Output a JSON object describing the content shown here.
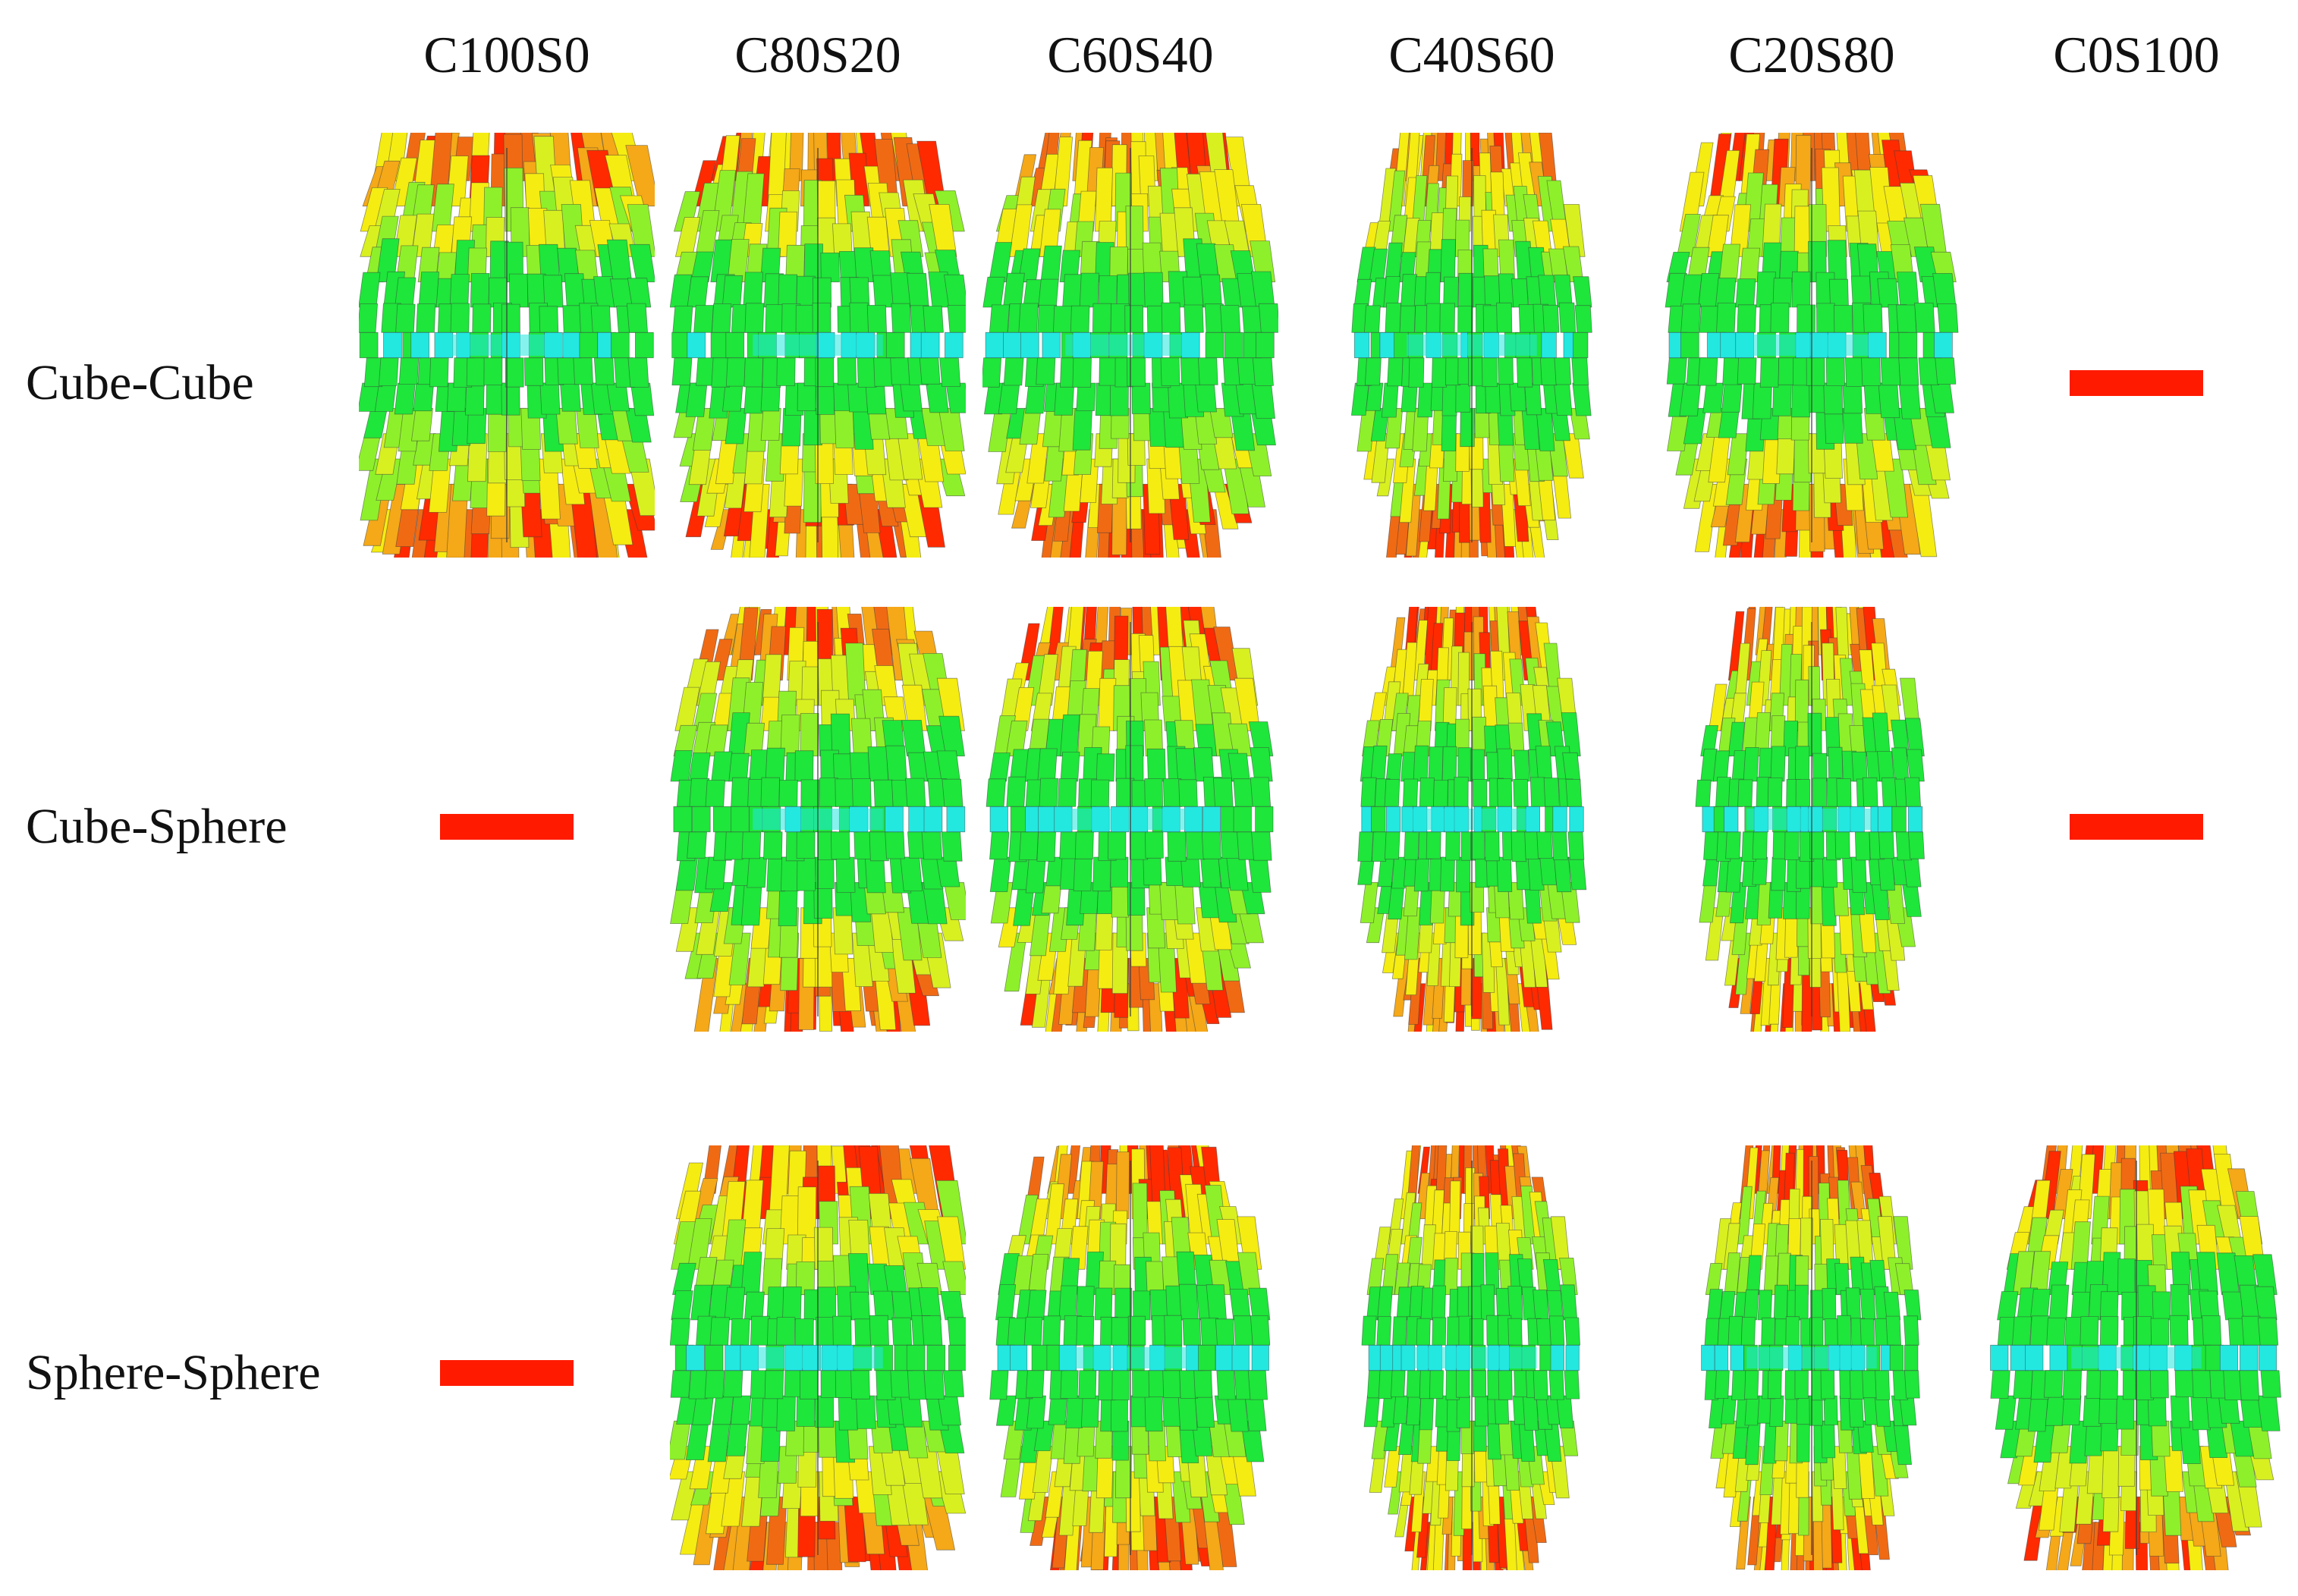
{
  "columns": [
    "C100S0",
    "C80S20",
    "C60S40",
    "C40S60",
    "C20S80",
    "C0S100"
  ],
  "rows": [
    "Cube-Cube",
    "Cube-Sphere",
    "Sphere-Sphere"
  ],
  "grid": [
    [
      "shape",
      "shape",
      "shape",
      "shape",
      "shape",
      "none"
    ],
    [
      "none",
      "shape",
      "shape",
      "shape",
      "shape",
      "none"
    ],
    [
      "none",
      "shape",
      "shape",
      "shape",
      "shape",
      "shape"
    ]
  ],
  "colors": {
    "none_marker": "#ff1a00",
    "scale": [
      "#22e8e0",
      "#1ee63a",
      "#8ef02a",
      "#d8f020",
      "#f5ec12",
      "#f5a818",
      "#f06a14",
      "#ff2a00"
    ],
    "edge": "#3a3a3a"
  },
  "shape_style": [
    [
      {
        "spread": 0.62,
        "neck": 0.28,
        "flare": 1.15
      },
      {
        "spread": 0.52,
        "neck": 0.42,
        "flare": 1.05
      },
      {
        "spread": 0.5,
        "neck": 0.45,
        "flare": 1.0
      },
      {
        "spread": 0.4,
        "neck": 0.7,
        "flare": 0.92
      },
      {
        "spread": 0.5,
        "neck": 0.55,
        "flare": 1.02
      },
      null
    ],
    [
      null,
      {
        "spread": 0.52,
        "neck": 0.48,
        "flare": 1.0
      },
      {
        "spread": 0.48,
        "neck": 0.52,
        "flare": 0.98
      },
      {
        "spread": 0.38,
        "neck": 0.75,
        "flare": 0.9
      },
      {
        "spread": 0.38,
        "neck": 0.7,
        "flare": 0.9
      },
      null
    ],
    [
      null,
      {
        "spread": 0.56,
        "neck": 0.45,
        "flare": 1.05
      },
      {
        "spread": 0.46,
        "neck": 0.62,
        "flare": 0.95
      },
      {
        "spread": 0.36,
        "neck": 0.8,
        "flare": 0.88
      },
      {
        "spread": 0.36,
        "neck": 0.78,
        "flare": 0.88
      },
      {
        "spread": 0.48,
        "neck": 0.58,
        "flare": 1.0
      }
    ]
  ]
}
